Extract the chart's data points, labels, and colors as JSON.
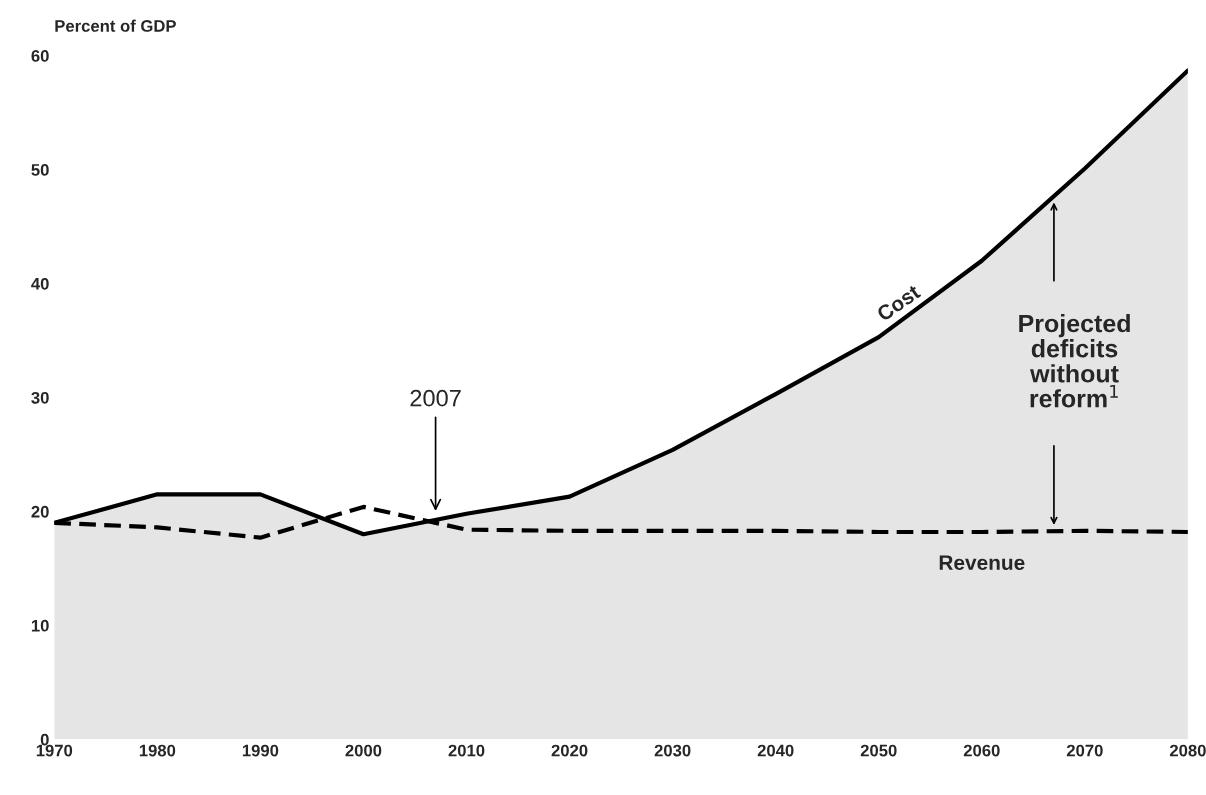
{
  "chart_data": {
    "type": "area",
    "ylabel": "Percent of GDP",
    "x": [
      1970,
      1980,
      1990,
      2000,
      2010,
      2020,
      2030,
      2040,
      2050,
      2060,
      2070,
      2080
    ],
    "series": [
      {
        "name": "Cost",
        "color": "#000000",
        "line_style": "solid",
        "values": [
          19,
          21.5,
          21.5,
          18,
          19.8,
          21.3,
          25.4,
          30.3,
          35.3,
          42,
          50.1,
          58.7
        ]
      },
      {
        "name": "Revenue",
        "type": "line",
        "color": "#000000",
        "line_style": "dashed",
        "values": [
          19,
          18.6,
          17.7,
          20.4,
          18.4,
          18.3,
          18.3,
          18.3,
          18.2,
          18.2,
          18.3,
          18.2
        ]
      }
    ],
    "annotations": [
      {
        "text": "2007",
        "x": 2007,
        "y": 19.8
      },
      "Projected deficits without reform$^{1}$"
    ],
    "xlim": [
      1970,
      2080
    ],
    "xticks": [
      1970,
      1980,
      1990,
      2000,
      2010,
      2020,
      2030,
      2040,
      2050,
      2060,
      2070,
      2080
    ],
    "ylim": [
      0,
      60
    ],
    "yticks": [
      0,
      10,
      20,
      30,
      40,
      50,
      60
    ],
    "grid": false,
    "legend": false
  }
}
